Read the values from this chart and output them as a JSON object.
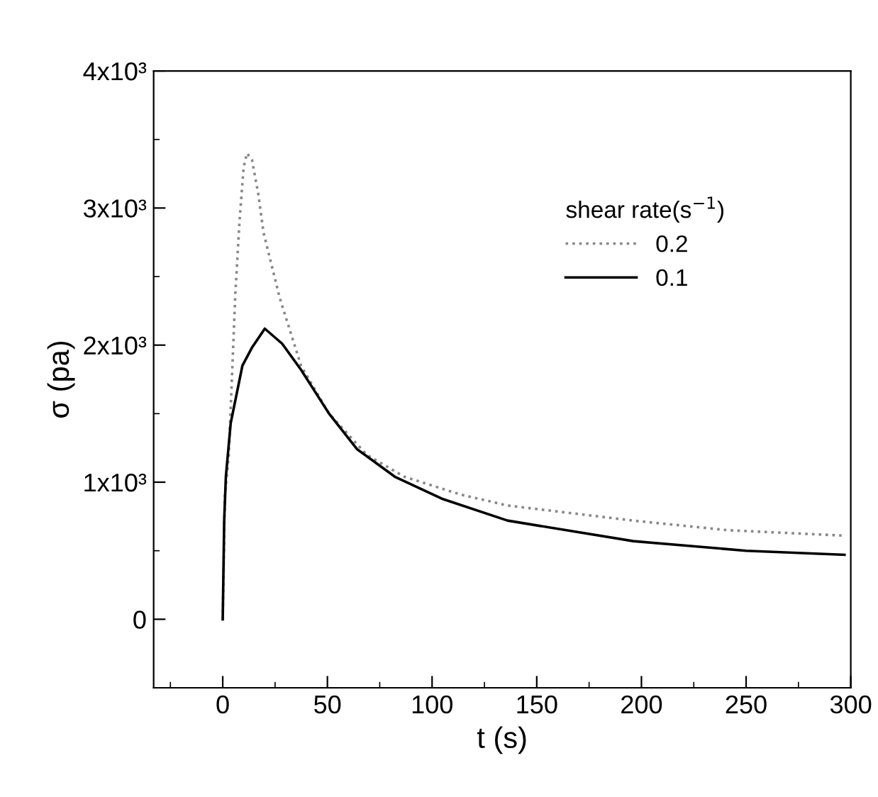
{
  "chart_data": {
    "type": "line",
    "xlabel": "t (s)",
    "ylabel": "σ (pa)",
    "legend_title": "shear rate(s$^{−1}$)",
    "legend": "right",
    "grid": false,
    "marker": "none",
    "xlim": [
      -33,
      300
    ],
    "xticks": [
      {
        "value": -25,
        "label": null
      },
      0,
      {
        "value": 25,
        "label": null
      },
      50,
      {
        "value": 75,
        "label": null
      },
      100,
      {
        "value": 125,
        "label": null
      },
      150,
      {
        "value": 175,
        "label": null
      },
      200,
      {
        "value": 225,
        "label": null
      },
      250,
      {
        "value": 275,
        "label": null
      },
      300
    ],
    "ylim": [
      -500,
      4000
    ],
    "yticks": [
      {
        "value": 0,
        "label": "0"
      },
      {
        "value": 500,
        "label": null
      },
      {
        "value": 1000,
        "label": "1x10³"
      },
      {
        "value": 1500,
        "label": null
      },
      {
        "value": 2000,
        "label": "2x10³"
      },
      {
        "value": 2500,
        "label": null
      },
      {
        "value": 3000,
        "label": "3x10³"
      },
      {
        "value": 3500,
        "label": null
      },
      {
        "value": 4000,
        "label": "4x10³"
      }
    ],
    "series": [
      {
        "name": "0.2",
        "color": "#888888",
        "line_style": "dotted",
        "x": [
          0,
          1,
          2.9,
          4.5,
          6,
          8,
          10,
          11.6,
          14,
          17,
          19.5,
          27.3,
          37.4,
          50.8,
          68.8,
          86.7,
          113.6,
          136,
          196,
          241,
          297
        ],
        "values": [
          0,
          900,
          1200,
          1800,
          2370,
          2900,
          3300,
          3400,
          3350,
          3100,
          2820,
          2340,
          1850,
          1500,
          1200,
          1040,
          910,
          830,
          720,
          650,
          610
        ]
      },
      {
        "name": "0.1",
        "color": "#000000",
        "line_style": "solid",
        "x": [
          0,
          0.7,
          1.5,
          3.8,
          9.4,
          13.9,
          20.1,
          28.4,
          37.4,
          50.8,
          64.2,
          82.2,
          104.6,
          136,
          196,
          250,
          297
        ],
        "values": [
          0,
          720,
          1040,
          1430,
          1850,
          1980,
          2120,
          2010,
          1820,
          1500,
          1240,
          1040,
          880,
          720,
          570,
          500,
          470
        ]
      }
    ]
  }
}
